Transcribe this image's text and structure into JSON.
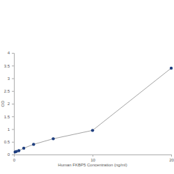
{
  "chart_data": {
    "type": "line",
    "x_label": "Human FKBP5 Concentration (ng/ml)",
    "y_label": "OD",
    "x": [
      0.156,
      0.312,
      0.625,
      1.25,
      2.5,
      5,
      10,
      20
    ],
    "values": [
      0.1,
      0.12,
      0.15,
      0.25,
      0.4,
      0.62,
      0.95,
      3.4
    ],
    "color": "#1f3f7f",
    "marker": "circle",
    "line_style": "solid",
    "xlim": [
      0,
      20
    ],
    "xticks": [
      0,
      10,
      20
    ],
    "ylim": [
      0,
      4
    ],
    "yticks": [
      0,
      0.5,
      1,
      1.5,
      2,
      2.5,
      3,
      3.5,
      4
    ],
    "grid": false
  }
}
